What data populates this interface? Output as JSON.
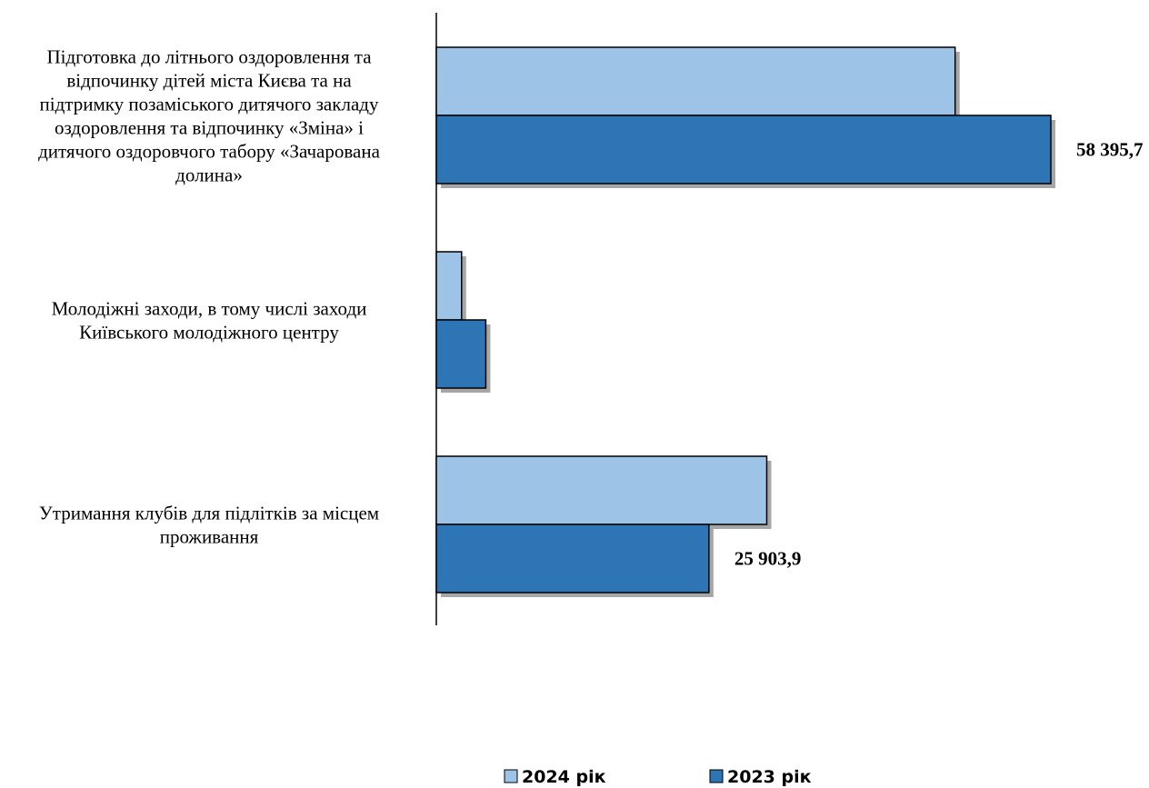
{
  "chart_data": {
    "type": "bar",
    "orientation": "horizontal",
    "categories": [
      "Підготовка до літнього оздоровлення та відпочинку дітей міста Києва та на підтримку позаміського дитячого закладу оздоровлення та відпочинку «Зміна» і дитячого оздоровчого табору «Зачарована долина»",
      "Молодіжні заходи, в тому числі заходи Київського молодіжного центру",
      "Утримання клубів для підлітків за місцем проживання"
    ],
    "category_lines": [
      [
        "Підготовка до літнього оздоровлення та",
        "відпочинку дітей міста Києва та на",
        "підтримку позаміського дитячого закладу",
        "оздоровлення та відпочинку «Зміна» і",
        "дитячого оздоровчого табору «Зачарована",
        "долина»"
      ],
      [
        "Молодіжні заходи, в тому числі заходи",
        "Київського молодіжного центру"
      ],
      [
        "Утримання клубів для підлітків за місцем",
        "проживання"
      ]
    ],
    "series": [
      {
        "name": "2024 рік",
        "color": "#9DC3E6",
        "values": [
          49300,
          2400,
          31400
        ]
      },
      {
        "name": "2023 рік",
        "color": "#2E75B6",
        "values": [
          58395.7,
          4700,
          25903.9
        ]
      }
    ],
    "data_labels": [
      {
        "series": 1,
        "index": 0,
        "text": "58 395,7"
      },
      {
        "series": 1,
        "index": 2,
        "text": "25 903,9"
      }
    ],
    "xlim": [
      0,
      58395.7
    ],
    "grid": false,
    "legend": "bottom"
  }
}
